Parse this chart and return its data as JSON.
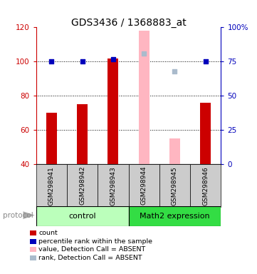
{
  "title": "GDS3436 / 1368883_at",
  "samples": [
    "GSM298941",
    "GSM298942",
    "GSM298943",
    "GSM298944",
    "GSM298945",
    "GSM298946"
  ],
  "ylim_left": [
    40,
    120
  ],
  "ylim_right": [
    0,
    100
  ],
  "yticks_left": [
    40,
    60,
    80,
    100,
    120
  ],
  "yticks_right": [
    0,
    25,
    50,
    75,
    100
  ],
  "ytick_labels_right": [
    "0",
    "25",
    "50",
    "75",
    "100%"
  ],
  "count_values": [
    70,
    75,
    102,
    null,
    null,
    76
  ],
  "rank_values": [
    75,
    75,
    77,
    null,
    null,
    75
  ],
  "absent_value_values": [
    null,
    null,
    null,
    118,
    55,
    null
  ],
  "absent_rank_values": [
    null,
    null,
    null,
    81,
    68,
    null
  ],
  "bar_color_present": "#CC0000",
  "bar_color_absent_value": "#FFB6C1",
  "dot_color_present": "#0000BB",
  "dot_color_absent_rank": "#AABBCC",
  "bar_width": 0.35,
  "tick_color_left": "#CC0000",
  "tick_color_right": "#0000BB",
  "grid_yticks": [
    60,
    80,
    100
  ],
  "legend_items": [
    {
      "color": "#CC0000",
      "label": "count"
    },
    {
      "color": "#0000BB",
      "label": "percentile rank within the sample"
    },
    {
      "color": "#FFB6C1",
      "label": "value, Detection Call = ABSENT"
    },
    {
      "color": "#AABBCC",
      "label": "rank, Detection Call = ABSENT"
    }
  ],
  "ctrl_color": "#BBFFBB",
  "math_color": "#33DD44",
  "label_bg_color": "#CCCCCC",
  "protocol_text": "protocol"
}
